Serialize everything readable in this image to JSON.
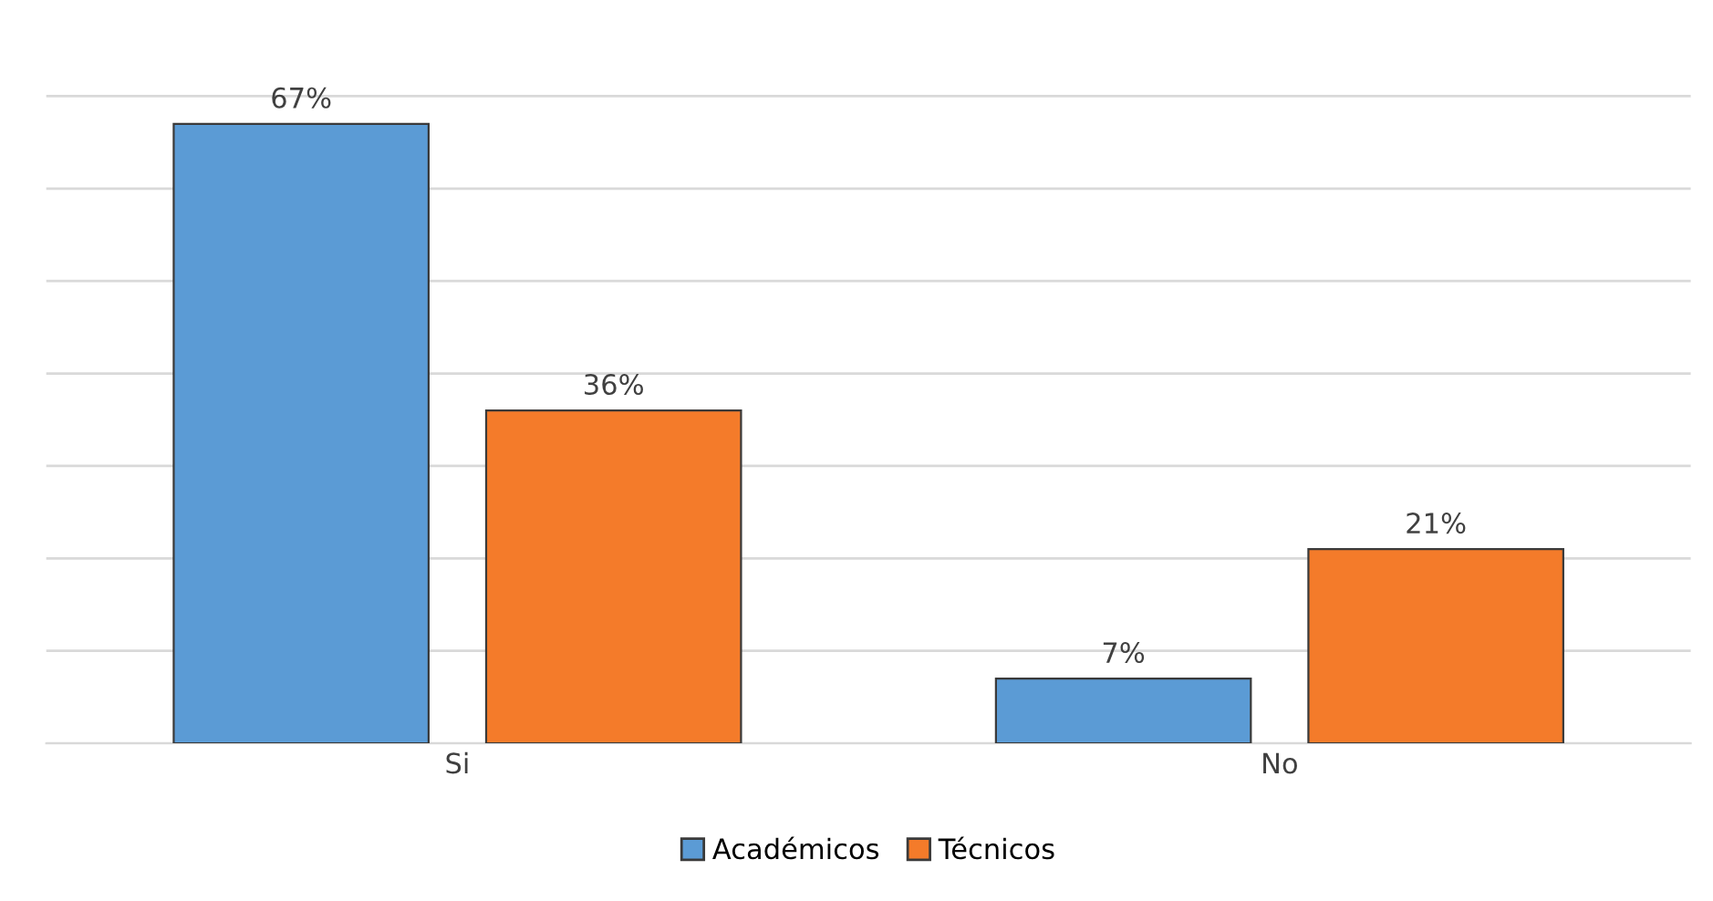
{
  "chart_data": {
    "type": "bar",
    "categories": [
      "Si",
      "No"
    ],
    "series": [
      {
        "name": "Académicos",
        "color": "#5b9bd5",
        "values": [
          67,
          7
        ],
        "value_labels": [
          "67%",
          "7%"
        ]
      },
      {
        "name": "Técnicos",
        "color": "#f47b2a",
        "values": [
          36,
          21
        ],
        "value_labels": [
          "36%",
          "21%"
        ]
      }
    ],
    "tick_labels": "x",
    "grid": "y",
    "legend": "bottom"
  }
}
